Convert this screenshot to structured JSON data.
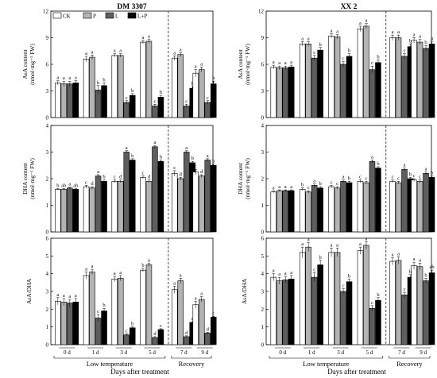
{
  "colors": {
    "CK": "#ffffff",
    "P": "#b3b3b3",
    "L": "#5e5e5e",
    "L+P": "#000000"
  },
  "legend": [
    "CK",
    "P",
    "L",
    "L+P"
  ],
  "day_labels": [
    "0 d",
    "1 d",
    "3 d",
    "5 d",
    "7 d",
    "9 d"
  ],
  "groups": {
    "low": "Low temperature",
    "rec": "Recovery"
  },
  "xtitle": "Days after treatment",
  "chart_data": [
    {
      "type": "bar",
      "title": "DM 3307",
      "ylabel": [
        "AsA content",
        "(nmol·mg⁻¹ FW)"
      ],
      "ylim": [
        0,
        12
      ],
      "yticks": [
        0,
        3,
        6,
        9,
        12
      ],
      "categories": [
        "0 d",
        "1 d",
        "3 d",
        "5 d",
        "7 d",
        "9 d"
      ],
      "series": [
        {
          "name": "CK",
          "values": [
            3.9,
            6.6,
            7.0,
            8.5,
            6.7,
            5.0
          ],
          "errors": [
            0.25,
            0.3,
            0.2,
            0.2,
            0.25,
            0.4
          ]
        },
        {
          "name": "P",
          "values": [
            3.8,
            6.8,
            7.0,
            8.6,
            7.1,
            5.4
          ],
          "errors": [
            0.3,
            0.25,
            0.2,
            0.2,
            0.2,
            0.3
          ]
        },
        {
          "name": "L",
          "values": [
            3.8,
            3.1,
            1.7,
            1.3,
            1.3,
            1.7
          ],
          "errors": [
            0.3,
            0.5,
            0.2,
            0.2,
            0.2,
            0.2
          ]
        },
        {
          "name": "L+P",
          "values": [
            3.9,
            3.6,
            2.5,
            2.3,
            3.3,
            3.8
          ],
          "errors": [
            0.25,
            0.3,
            0.2,
            0.2,
            0.2,
            0.3
          ]
        }
      ],
      "labels": [
        [
          "a",
          "a",
          "a",
          "a"
        ],
        [
          "a",
          "a",
          "b",
          "b"
        ],
        [
          "a",
          "a",
          "c",
          "b"
        ],
        [
          "a",
          "a",
          "c",
          "b"
        ],
        [
          "a",
          "a",
          "c",
          "b"
        ],
        [
          "a",
          "a",
          "c",
          "b"
        ]
      ]
    },
    {
      "type": "bar",
      "title": "XX 2",
      "ylabel": [
        "AsA content",
        "(nmol·mg⁻¹ FW)"
      ],
      "ylim": [
        0,
        12
      ],
      "yticks": [
        0,
        3,
        6,
        9,
        12
      ],
      "categories": [
        "0 d",
        "1 d",
        "3 d",
        "5 d",
        "7 d",
        "9 d"
      ],
      "series": [
        {
          "name": "CK",
          "values": [
            5.7,
            8.3,
            9.2,
            10.0,
            9.0,
            8.7
          ],
          "errors": [
            0.2,
            0.25,
            0.25,
            0.3,
            0.3,
            0.3
          ]
        },
        {
          "name": "P",
          "values": [
            5.6,
            8.3,
            9.1,
            10.3,
            9.0,
            8.5
          ],
          "errors": [
            0.2,
            0.25,
            0.25,
            0.3,
            0.3,
            0.3
          ]
        },
        {
          "name": "L",
          "values": [
            5.6,
            6.7,
            6.0,
            5.4,
            6.9,
            7.8
          ],
          "errors": [
            0.2,
            0.3,
            0.3,
            0.4,
            0.3,
            0.3
          ]
        },
        {
          "name": "L+P",
          "values": [
            5.7,
            7.6,
            6.9,
            6.2,
            8.0,
            8.3
          ],
          "errors": [
            0.2,
            0.3,
            0.3,
            0.3,
            0.3,
            0.3
          ]
        }
      ],
      "labels": [
        [
          "a",
          "a",
          "a",
          "a"
        ],
        [
          "a",
          "a",
          "c",
          "b"
        ],
        [
          "a",
          "a",
          "c",
          "b"
        ],
        [
          "a",
          "a",
          "c",
          "b"
        ],
        [
          "a",
          "a",
          "c",
          "b"
        ],
        [
          "a",
          "a",
          "b",
          "a"
        ]
      ]
    },
    {
      "type": "bar",
      "title": "",
      "ylabel": [
        "DHA content",
        "(nmol·mg⁻¹ FW)"
      ],
      "ylim": [
        0,
        4
      ],
      "yticks": [
        0,
        1,
        2,
        3,
        4
      ],
      "categories": [
        "0 d",
        "1 d",
        "3 d",
        "5 d",
        "7 d",
        "9 d"
      ],
      "series": [
        {
          "name": "CK",
          "values": [
            1.6,
            1.7,
            1.9,
            2.05,
            2.2,
            2.25
          ],
          "errors": [
            0.03,
            0.05,
            0.05,
            0.05,
            0.1,
            0.1
          ]
        },
        {
          "name": "P",
          "values": [
            1.6,
            1.65,
            1.9,
            1.9,
            2.0,
            2.1
          ],
          "errors": [
            0.03,
            0.05,
            0.05,
            0.05,
            0.05,
            0.05
          ]
        },
        {
          "name": "L",
          "values": [
            1.65,
            2.1,
            3.0,
            3.2,
            3.0,
            2.7
          ],
          "errors": [
            0.03,
            0.05,
            0.05,
            0.05,
            0.05,
            0.05
          ]
        },
        {
          "name": "L+P",
          "values": [
            1.6,
            1.9,
            2.7,
            2.65,
            2.6,
            2.5
          ],
          "errors": [
            0.03,
            0.05,
            0.05,
            0.05,
            0.05,
            0.05
          ]
        }
      ],
      "labels": [
        [
          "b",
          "ab",
          "a",
          "ab"
        ],
        [
          "c",
          "d",
          "a",
          "b"
        ],
        [
          "c",
          "d",
          "a",
          "b"
        ],
        [
          "c",
          "d",
          "a",
          "b"
        ],
        [
          "c",
          "d",
          "a",
          "b"
        ],
        [
          "c",
          "d",
          "a",
          "b"
        ]
      ]
    },
    {
      "type": "bar",
      "title": "",
      "ylabel": [
        "DHA content",
        "(nmol·mg⁻¹ FW)"
      ],
      "ylim": [
        0,
        4
      ],
      "yticks": [
        0,
        1,
        2,
        3,
        4
      ],
      "categories": [
        "0 d",
        "1 d",
        "3 d",
        "5 d",
        "7 d",
        "9 d"
      ],
      "series": [
        {
          "name": "CK",
          "values": [
            1.5,
            1.6,
            1.7,
            1.9,
            1.9,
            1.95
          ],
          "errors": [
            0.03,
            0.05,
            0.05,
            0.05,
            0.05,
            0.05
          ]
        },
        {
          "name": "P",
          "values": [
            1.55,
            1.5,
            1.65,
            1.85,
            1.85,
            1.9
          ],
          "errors": [
            0.03,
            0.05,
            0.05,
            0.05,
            0.05,
            0.05
          ]
        },
        {
          "name": "L",
          "values": [
            1.55,
            1.75,
            1.9,
            2.65,
            2.35,
            2.2
          ],
          "errors": [
            0.03,
            0.05,
            0.05,
            0.05,
            0.05,
            0.05
          ]
        },
        {
          "name": "L+P",
          "values": [
            1.55,
            1.65,
            1.85,
            2.4,
            2.0,
            2.05
          ],
          "errors": [
            0.03,
            0.05,
            0.05,
            0.05,
            0.05,
            0.05
          ]
        }
      ],
      "labels": [
        [
          "a",
          "a",
          "a",
          "a"
        ],
        [
          "b",
          "c",
          "a",
          "b"
        ],
        [
          "c",
          "c",
          "a",
          "b"
        ],
        [
          "c",
          "c",
          "a",
          "b"
        ],
        [
          "c",
          "c",
          "a",
          "b"
        ],
        [
          "c",
          "c",
          "a",
          "b"
        ]
      ]
    },
    {
      "type": "bar",
      "title": "",
      "ylabel": [
        "AsA/DHA"
      ],
      "ylim": [
        0,
        6
      ],
      "yticks": [
        0,
        1,
        2,
        3,
        4,
        5,
        6
      ],
      "categories": [
        "0 d",
        "1 d",
        "3 d",
        "5 d",
        "7 d",
        "9 d"
      ],
      "series": [
        {
          "name": "CK",
          "values": [
            2.45,
            3.9,
            3.7,
            4.2,
            3.1,
            2.25
          ],
          "errors": [
            0.2,
            0.2,
            0.15,
            0.1,
            0.2,
            0.2
          ]
        },
        {
          "name": "P",
          "values": [
            2.4,
            4.1,
            3.75,
            4.5,
            3.6,
            2.55
          ],
          "errors": [
            0.2,
            0.15,
            0.15,
            0.1,
            0.15,
            0.15
          ]
        },
        {
          "name": "L",
          "values": [
            2.35,
            1.5,
            0.55,
            0.4,
            0.45,
            0.65
          ],
          "errors": [
            0.2,
            0.2,
            0.05,
            0.05,
            0.05,
            0.05
          ]
        },
        {
          "name": "L+P",
          "values": [
            2.4,
            1.9,
            0.95,
            0.85,
            1.25,
            1.55
          ],
          "errors": [
            0.2,
            0.15,
            0.05,
            0.05,
            0.05,
            0.05
          ]
        }
      ],
      "labels": [
        [
          "a",
          "a",
          "a",
          "a"
        ],
        [
          "a",
          "a",
          "c",
          "b"
        ],
        [
          "a",
          "a",
          "c",
          "b"
        ],
        [
          "b",
          "a",
          "d",
          "c"
        ],
        [
          "a",
          "a",
          "d",
          "c"
        ],
        [
          "a",
          "a",
          "d",
          "c"
        ]
      ]
    },
    {
      "type": "bar",
      "title": "",
      "ylabel": [
        "AsA/DHA"
      ],
      "ylim": [
        0,
        6
      ],
      "yticks": [
        0,
        1,
        2,
        3,
        4,
        5,
        6
      ],
      "categories": [
        "0 d",
        "1 d",
        "3 d",
        "5 d",
        "7 d",
        "9 d"
      ],
      "series": [
        {
          "name": "CK",
          "values": [
            3.8,
            5.2,
            5.2,
            5.3,
            4.7,
            4.45
          ],
          "errors": [
            0.2,
            0.3,
            0.25,
            0.2,
            0.2,
            0.2
          ]
        },
        {
          "name": "P",
          "values": [
            3.6,
            5.5,
            5.2,
            5.6,
            4.75,
            4.4
          ],
          "errors": [
            0.2,
            0.25,
            0.25,
            0.2,
            0.2,
            0.2
          ]
        },
        {
          "name": "L",
          "values": [
            3.65,
            3.8,
            3.0,
            2.05,
            2.8,
            3.6
          ],
          "errors": [
            0.2,
            0.25,
            0.15,
            0.15,
            0.15,
            0.15
          ]
        },
        {
          "name": "L+P",
          "values": [
            3.7,
            4.5,
            3.55,
            2.5,
            3.8,
            4.05
          ],
          "errors": [
            0.2,
            0.25,
            0.15,
            0.15,
            0.15,
            0.15
          ]
        }
      ],
      "labels": [
        [
          "a",
          "a",
          "a",
          "a"
        ],
        [
          "a",
          "a",
          "c",
          "b"
        ],
        [
          "a",
          "a",
          "c",
          "b"
        ],
        [
          "a",
          "a",
          "c",
          "b"
        ],
        [
          "a",
          "a",
          "c",
          "b"
        ],
        [
          "a",
          "a",
          "b",
          "ab"
        ]
      ]
    }
  ]
}
